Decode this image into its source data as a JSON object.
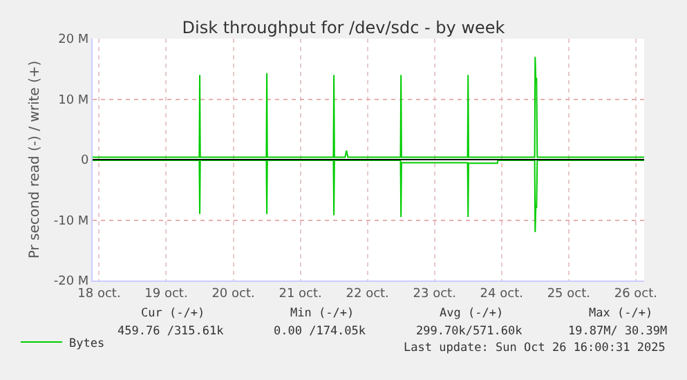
{
  "chart_data": {
    "type": "line",
    "title": "Disk throughput for /dev/sdc - by week",
    "ylabel": "Pr second read (-) / write (+)",
    "series": [
      {
        "name": "Bytes",
        "color": "#00cc00",
        "x": [
          "2025-10-18T09:40",
          "2025-10-19T23:50",
          "2025-10-20T00:00",
          "2025-10-20T00:10",
          "2025-10-20T23:50",
          "2025-10-21T00:00",
          "2025-10-21T00:10",
          "2025-10-21T23:50",
          "2025-10-22T00:00",
          "2025-10-22T00:10",
          "2025-10-22T04:00",
          "2025-10-22T04:30",
          "2025-10-22T05:00",
          "2025-10-22T23:50",
          "2025-10-23T00:00",
          "2025-10-23T00:10",
          "2025-10-23T23:50",
          "2025-10-24T00:00",
          "2025-10-24T00:10",
          "2025-10-24T23:50",
          "2025-10-25T00:00",
          "2025-10-25T00:15",
          "2025-10-25T00:30",
          "2025-10-25T00:45",
          "2025-10-26T15:00"
        ],
        "values": [
          0.4,
          0.4,
          14,
          0.4,
          0.4,
          14.3,
          0.4,
          0.4,
          14,
          0.4,
          0.4,
          1.5,
          0.4,
          0.4,
          14,
          0.4,
          0.4,
          14,
          0.4,
          0.4,
          17,
          13,
          13.5,
          0.4,
          0.4
        ]
      },
      {
        "color": "#00cc00",
        "x": [
          "2025-10-18T09:40",
          "2025-10-19T23:50",
          "2025-10-20T00:00",
          "2025-10-20T00:10",
          "2025-10-20T23:50",
          "2025-10-21T00:00",
          "2025-10-21T00:10",
          "2025-10-21T23:50",
          "2025-10-22T00:00",
          "2025-10-22T00:10",
          "2025-10-22T23:50",
          "2025-10-23T00:00",
          "2025-10-23T00:10",
          "2025-10-23T23:50",
          "2025-10-24T00:00",
          "2025-10-24T00:10",
          "2025-10-24T10:30",
          "2025-10-24T10:40",
          "2025-10-24T23:50",
          "2025-10-25T00:00",
          "2025-10-25T00:15",
          "2025-10-25T00:30",
          "2025-10-25T00:45",
          "2025-10-26T15:00"
        ],
        "values": [
          -0.1,
          -0.1,
          -9,
          -0.1,
          -0.1,
          -9,
          -0.1,
          -0.1,
          -9.2,
          -0.1,
          -0.1,
          -9.5,
          -0.5,
          -0.5,
          -9.5,
          -0.6,
          -0.6,
          -0.1,
          -0.1,
          -12,
          -7.5,
          -8,
          -0.1,
          -0.1
        ]
      }
    ],
    "xlim": [
      "2025-10-18T09:40",
      "2025-10-26T15:00"
    ],
    "xticks": [
      {
        "value": "2025-10-18T12:00",
        "label": "18 oct."
      },
      {
        "value": "2025-10-19T12:00",
        "label": "19 oct."
      },
      {
        "value": "2025-10-20T12:00",
        "label": "20 oct."
      },
      {
        "value": "2025-10-21T12:00",
        "label": "21 oct."
      },
      {
        "value": "2025-10-22T12:00",
        "label": "22 oct."
      },
      {
        "value": "2025-10-23T12:00",
        "label": "23 oct."
      },
      {
        "value": "2025-10-24T12:00",
        "label": "24 oct."
      },
      {
        "value": "2025-10-25T12:00",
        "label": "25 oct."
      },
      {
        "value": "2025-10-26T12:00",
        "label": "26 oct."
      }
    ],
    "ylim": [
      -20,
      20
    ],
    "yticks": [
      {
        "value": -20,
        "label": "-20 M"
      },
      {
        "value": -10,
        "label": "-10 M"
      },
      0,
      {
        "value": 10,
        "label": "10 M"
      },
      {
        "value": 20,
        "label": "20 M"
      }
    ],
    "ref_lines": [
      {
        "axis": "y",
        "value": 0,
        "color": "#000000"
      }
    ],
    "grid": true,
    "legend": "bottom left",
    "marker": "none",
    "line_style": "solid",
    "annotations": [
      "Cur (-/+)",
      "Min (-/+)",
      "Avg (-/+)",
      "Max (-/+)",
      "459.76 /315.61k",
      "0.00 /174.05k",
      "299.70k/571.60k",
      "19.87M/ 30.39M",
      "Last update: Sun Oct 26 16:00:31 2025"
    ]
  }
}
